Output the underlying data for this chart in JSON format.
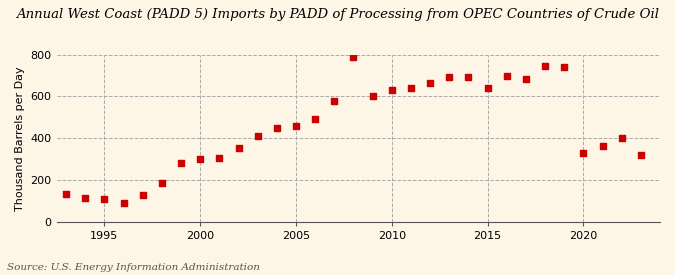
{
  "title": "Annual West Coast (PADD 5) Imports by PADD of Processing from OPEC Countries of Crude Oil",
  "ylabel": "Thousand Barrels per Day",
  "source": "Source: U.S. Energy Information Administration",
  "background_color": "#fdf5e6",
  "marker_color": "#cc0000",
  "years": [
    1993,
    1994,
    1995,
    1996,
    1997,
    1998,
    1999,
    2000,
    2001,
    2002,
    2003,
    2004,
    2005,
    2006,
    2007,
    2008,
    2009,
    2010,
    2011,
    2012,
    2013,
    2014,
    2015,
    2016,
    2017,
    2018,
    2019,
    2020,
    2021,
    2022,
    2023
  ],
  "values": [
    135,
    115,
    110,
    90,
    130,
    185,
    280,
    300,
    305,
    355,
    410,
    450,
    460,
    490,
    580,
    790,
    600,
    630,
    640,
    665,
    695,
    695,
    640,
    700,
    685,
    745,
    740,
    330,
    365,
    400,
    320
  ],
  "ylim": [
    0,
    800
  ],
  "yticks": [
    0,
    200,
    400,
    600,
    800
  ],
  "xlim": [
    1992.5,
    2024
  ],
  "xticks": [
    1995,
    2000,
    2005,
    2010,
    2015,
    2020
  ],
  "grid_color": "#aaaaaa",
  "title_fontsize": 9.5,
  "axis_fontsize": 8,
  "source_fontsize": 7.5
}
